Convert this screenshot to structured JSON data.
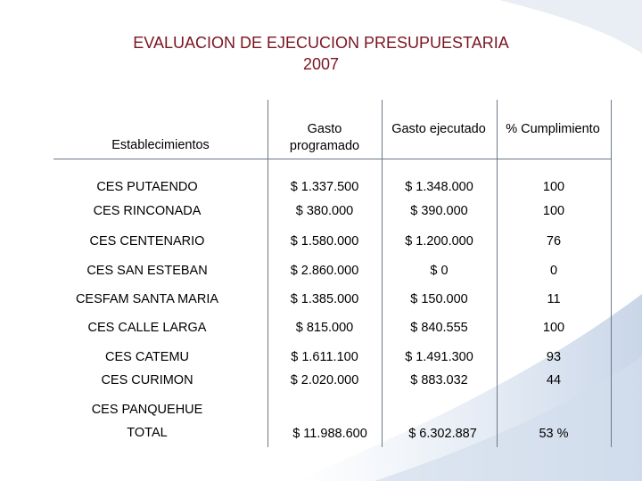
{
  "title": {
    "line1": "EVALUACION DE EJECUCION PRESUPUESTARIA",
    "line2": "2007"
  },
  "table": {
    "headers": {
      "establecimientos": "Establecimientos",
      "gasto_programado": "Gasto programado",
      "gasto_ejecutado": "Gasto ejecutado",
      "cumplimiento": "% Cumplimiento"
    },
    "rows": [
      {
        "establecimiento": "CES PUTAENDO",
        "programado": "$ 1.337.500",
        "ejecutado": "$ 1.348.000",
        "cumplimiento": "100"
      },
      {
        "establecimiento": "CES RINCONADA",
        "programado": "$ 380.000",
        "ejecutado": "$ 390.000",
        "cumplimiento": "100"
      },
      {
        "establecimiento": "CES CENTENARIO",
        "programado": "$ 1.580.000",
        "ejecutado": "$ 1.200.000",
        "cumplimiento": "76"
      },
      {
        "establecimiento": "CES SAN ESTEBAN",
        "programado": "$ 2.860.000",
        "ejecutado": "$ 0",
        "cumplimiento": "0"
      },
      {
        "establecimiento": "CESFAM SANTA MARIA",
        "programado": "$ 1.385.000",
        "ejecutado": "$ 150.000",
        "cumplimiento": "11"
      },
      {
        "establecimiento": "CES CALLE LARGA",
        "programado": "$ 815.000",
        "ejecutado": "$ 840.555",
        "cumplimiento": "100"
      },
      {
        "establecimiento": "CES CATEMU",
        "programado": "$ 1.611.100",
        "ejecutado": "$ 1.491.300",
        "cumplimiento": "93"
      },
      {
        "establecimiento": "CES CURIMON",
        "programado": "$ 2.020.000",
        "ejecutado": "$ 883.032",
        "cumplimiento": "44"
      },
      {
        "establecimiento": "CES PANQUEHUE",
        "programado": "",
        "ejecutado": "",
        "cumplimiento": ""
      }
    ],
    "total": {
      "label": "TOTAL",
      "programado": "$ 11.988.600",
      "ejecutado": "$ 6.302.887",
      "cumplimiento": "53 %"
    }
  }
}
